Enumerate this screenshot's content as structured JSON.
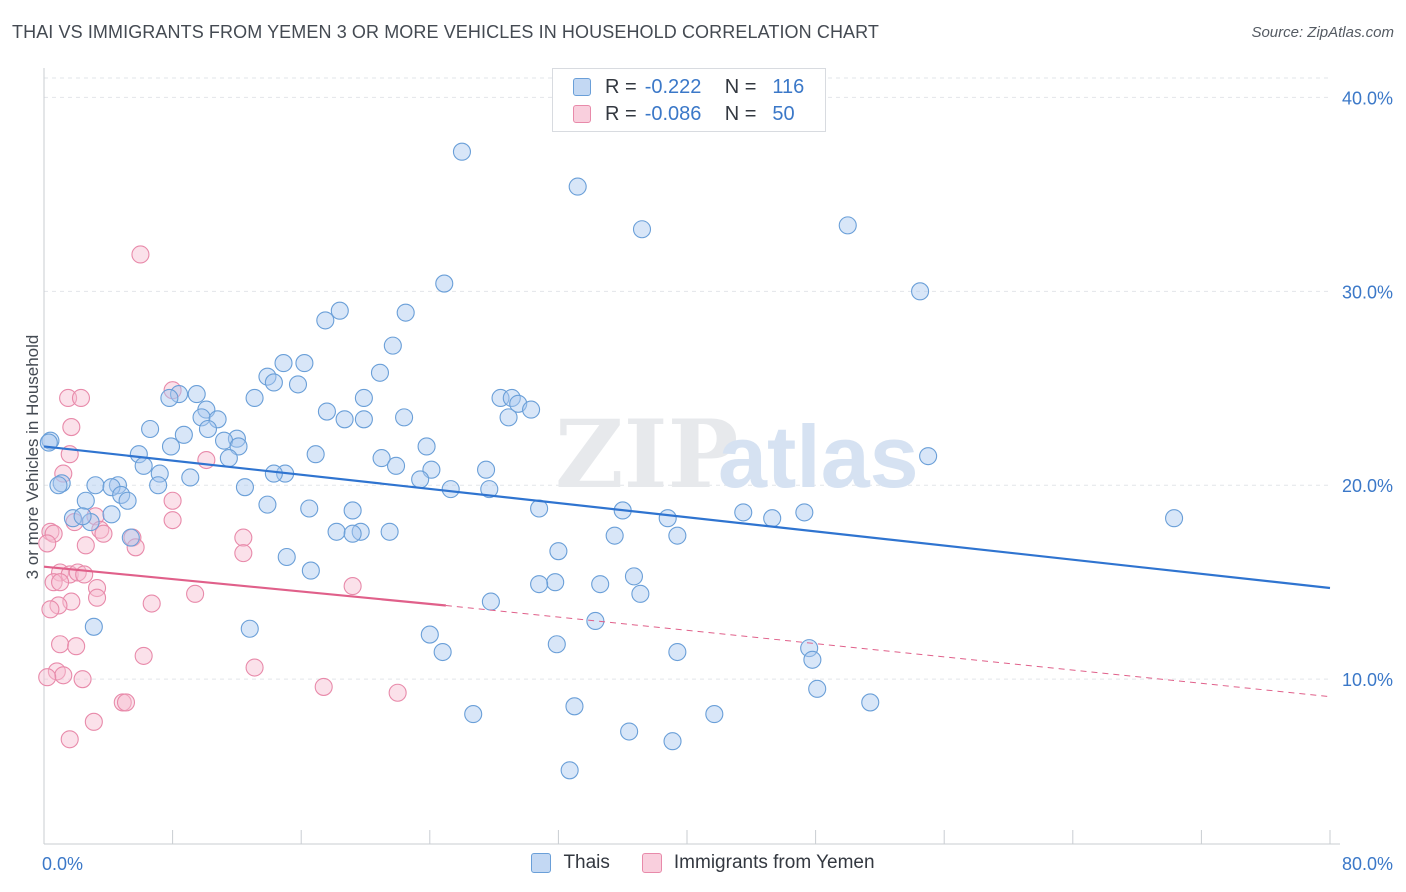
{
  "title": "THAI VS IMMIGRANTS FROM YEMEN 3 OR MORE VEHICLES IN HOUSEHOLD CORRELATION CHART",
  "source": "Source: ZipAtlas.com",
  "watermark": {
    "part1": "ZIP",
    "part2": "atlas"
  },
  "legend": {
    "rows": [
      {
        "r_label": "R =",
        "r_value": "-0.222",
        "n_label": "N =",
        "n_value": "116"
      },
      {
        "r_label": "R =",
        "r_value": "-0.086",
        "n_label": "N =",
        "n_value": "50"
      }
    ]
  },
  "chart_data": {
    "type": "scatter",
    "title": "THAI VS IMMIGRANTS FROM YEMEN 3 OR MORE VEHICLES IN HOUSEHOLD CORRELATION CHART",
    "xlabel": "",
    "ylabel": "3 or more Vehicles in Household",
    "xlim": [
      0,
      80
    ],
    "ylim": [
      1.5,
      41
    ],
    "x_tick_labels": [
      "0.0%",
      "80.0%"
    ],
    "y_ticks": [
      10,
      20,
      30,
      40
    ],
    "y_tick_labels": [
      "10.0%",
      "20.0%",
      "30.0%",
      "40.0%"
    ],
    "grid": true,
    "colors": {
      "thai_fill": "#a8c8f0",
      "thai_stroke": "#6a9fd8",
      "thai_line": "#2f74d0",
      "yemen_fill": "#f6bcd0",
      "yemen_stroke": "#e88aaa",
      "yemen_line": "#e0608a",
      "axis_text": "#3b78c8"
    },
    "series": [
      {
        "name": "Thais",
        "trend": {
          "x0": 0,
          "y0": 22.0,
          "x1": 80,
          "y1": 14.7
        },
        "points": [
          [
            26.0,
            37.2
          ],
          [
            33.2,
            35.4
          ],
          [
            37.2,
            33.2
          ],
          [
            50.0,
            33.4
          ],
          [
            24.9,
            30.4
          ],
          [
            54.5,
            30.0
          ],
          [
            18.4,
            29.0
          ],
          [
            22.5,
            28.9
          ],
          [
            17.5,
            28.5
          ],
          [
            21.7,
            27.2
          ],
          [
            14.9,
            26.3
          ],
          [
            16.2,
            26.3
          ],
          [
            20.9,
            25.8
          ],
          [
            13.9,
            25.6
          ],
          [
            14.3,
            25.3
          ],
          [
            15.8,
            25.2
          ],
          [
            8.4,
            24.7
          ],
          [
            7.8,
            24.5
          ],
          [
            13.1,
            24.5
          ],
          [
            19.9,
            24.5
          ],
          [
            28.4,
            24.5
          ],
          [
            29.1,
            24.5
          ],
          [
            29.5,
            24.2
          ],
          [
            30.3,
            23.9
          ],
          [
            10.1,
            23.9
          ],
          [
            17.6,
            23.8
          ],
          [
            9.8,
            23.5
          ],
          [
            10.8,
            23.4
          ],
          [
            18.7,
            23.4
          ],
          [
            19.9,
            23.4
          ],
          [
            22.4,
            23.5
          ],
          [
            28.9,
            23.5
          ],
          [
            6.6,
            22.9
          ],
          [
            10.2,
            22.9
          ],
          [
            8.7,
            22.6
          ],
          [
            12.0,
            22.4
          ],
          [
            11.2,
            22.3
          ],
          [
            7.9,
            22.0
          ],
          [
            12.1,
            22.0
          ],
          [
            23.8,
            22.0
          ],
          [
            0.4,
            22.3
          ],
          [
            5.9,
            21.6
          ],
          [
            11.5,
            21.4
          ],
          [
            16.9,
            21.6
          ],
          [
            21.0,
            21.4
          ],
          [
            6.2,
            21.0
          ],
          [
            21.9,
            21.0
          ],
          [
            24.1,
            20.8
          ],
          [
            27.5,
            20.8
          ],
          [
            15.0,
            20.6
          ],
          [
            7.2,
            20.6
          ],
          [
            9.1,
            20.4
          ],
          [
            23.4,
            20.3
          ],
          [
            1.1,
            20.1
          ],
          [
            7.1,
            20.0
          ],
          [
            3.2,
            20.0
          ],
          [
            4.6,
            20.0
          ],
          [
            4.2,
            19.9
          ],
          [
            12.5,
            19.9
          ],
          [
            25.3,
            19.8
          ],
          [
            27.7,
            19.8
          ],
          [
            4.8,
            19.5
          ],
          [
            5.2,
            19.2
          ],
          [
            2.6,
            19.2
          ],
          [
            13.9,
            19.0
          ],
          [
            16.5,
            18.8
          ],
          [
            30.8,
            18.8
          ],
          [
            36.0,
            18.7
          ],
          [
            43.5,
            18.6
          ],
          [
            19.2,
            18.7
          ],
          [
            1.8,
            18.3
          ],
          [
            4.2,
            18.5
          ],
          [
            38.8,
            18.3
          ],
          [
            45.3,
            18.3
          ],
          [
            47.3,
            18.6
          ],
          [
            70.3,
            18.3
          ],
          [
            2.9,
            18.1
          ],
          [
            18.2,
            17.6
          ],
          [
            21.5,
            17.6
          ],
          [
            19.7,
            17.6
          ],
          [
            19.2,
            17.5
          ],
          [
            35.5,
            17.4
          ],
          [
            39.4,
            17.4
          ],
          [
            5.4,
            17.3
          ],
          [
            32.0,
            16.6
          ],
          [
            15.1,
            16.3
          ],
          [
            16.6,
            15.6
          ],
          [
            36.7,
            15.3
          ],
          [
            31.8,
            15.0
          ],
          [
            30.8,
            14.9
          ],
          [
            34.6,
            14.9
          ],
          [
            37.1,
            14.4
          ],
          [
            27.8,
            14.0
          ],
          [
            34.3,
            13.0
          ],
          [
            3.1,
            12.7
          ],
          [
            12.8,
            12.6
          ],
          [
            24.0,
            12.3
          ],
          [
            31.9,
            11.8
          ],
          [
            24.8,
            11.4
          ],
          [
            39.4,
            11.4
          ],
          [
            47.6,
            11.6
          ],
          [
            47.8,
            11.0
          ],
          [
            48.1,
            9.5
          ],
          [
            51.4,
            8.8
          ],
          [
            33.0,
            8.6
          ],
          [
            26.7,
            8.2
          ],
          [
            41.7,
            8.2
          ],
          [
            36.4,
            7.3
          ],
          [
            39.1,
            6.8
          ],
          [
            32.7,
            5.3
          ],
          [
            55.0,
            21.5
          ],
          [
            0.9,
            20.0
          ],
          [
            0.3,
            22.2
          ],
          [
            9.5,
            24.7
          ],
          [
            2.4,
            18.4
          ],
          [
            14.3,
            20.6
          ]
        ]
      },
      {
        "name": "Immigrants from Yemen",
        "trend": {
          "x0": 0,
          "y0": 15.8,
          "x1": 25,
          "y1": 13.8
        },
        "trend_dashed": {
          "x0": 25,
          "y0": 13.8,
          "x1": 80,
          "y1": 9.1
        },
        "points": [
          [
            6.0,
            31.9
          ],
          [
            8.0,
            24.9
          ],
          [
            1.5,
            24.5
          ],
          [
            2.3,
            24.5
          ],
          [
            1.7,
            23.0
          ],
          [
            1.6,
            21.6
          ],
          [
            10.1,
            21.3
          ],
          [
            1.2,
            20.6
          ],
          [
            8.0,
            19.2
          ],
          [
            3.2,
            18.4
          ],
          [
            1.9,
            18.1
          ],
          [
            8.0,
            18.2
          ],
          [
            3.5,
            17.7
          ],
          [
            0.4,
            17.6
          ],
          [
            0.6,
            17.5
          ],
          [
            12.4,
            17.3
          ],
          [
            5.5,
            17.3
          ],
          [
            0.2,
            17.0
          ],
          [
            5.7,
            16.8
          ],
          [
            12.4,
            16.5
          ],
          [
            1.0,
            15.5
          ],
          [
            1.6,
            15.4
          ],
          [
            2.1,
            15.5
          ],
          [
            2.5,
            15.4
          ],
          [
            0.6,
            15.0
          ],
          [
            1.0,
            15.0
          ],
          [
            19.2,
            14.8
          ],
          [
            3.3,
            14.7
          ],
          [
            9.4,
            14.4
          ],
          [
            3.3,
            14.2
          ],
          [
            1.7,
            14.0
          ],
          [
            6.7,
            13.9
          ],
          [
            0.9,
            13.8
          ],
          [
            0.4,
            13.6
          ],
          [
            1.0,
            11.8
          ],
          [
            2.0,
            11.7
          ],
          [
            6.2,
            11.2
          ],
          [
            13.1,
            10.6
          ],
          [
            0.8,
            10.4
          ],
          [
            1.2,
            10.2
          ],
          [
            0.2,
            10.1
          ],
          [
            2.4,
            10.0
          ],
          [
            17.4,
            9.6
          ],
          [
            22.0,
            9.3
          ],
          [
            4.9,
            8.8
          ],
          [
            5.1,
            8.8
          ],
          [
            3.1,
            7.8
          ],
          [
            1.6,
            6.9
          ],
          [
            2.6,
            16.9
          ],
          [
            3.7,
            17.5
          ]
        ]
      }
    ]
  },
  "bottom_legend": {
    "items": [
      {
        "label": "Thais"
      },
      {
        "label": "Immigrants from Yemen"
      }
    ]
  }
}
